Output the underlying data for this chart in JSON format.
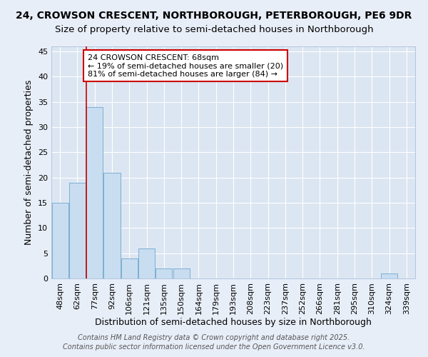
{
  "title_line1": "24, CROWSON CRESCENT, NORTHBOROUGH, PETERBOROUGH, PE6 9DR",
  "title_line2": "Size of property relative to semi-detached houses in Northborough",
  "xlabel": "Distribution of semi-detached houses by size in Northborough",
  "ylabel": "Number of semi-detached properties",
  "categories": [
    "48sqm",
    "62sqm",
    "77sqm",
    "92sqm",
    "106sqm",
    "121sqm",
    "135sqm",
    "150sqm",
    "164sqm",
    "179sqm",
    "193sqm",
    "208sqm",
    "223sqm",
    "237sqm",
    "252sqm",
    "266sqm",
    "281sqm",
    "295sqm",
    "310sqm",
    "324sqm",
    "339sqm"
  ],
  "values": [
    15,
    19,
    34,
    21,
    4,
    6,
    2,
    2,
    0,
    0,
    0,
    0,
    0,
    0,
    0,
    0,
    0,
    0,
    0,
    1,
    0
  ],
  "bar_color": "#c9ddf0",
  "bar_edgecolor": "#7bafd4",
  "property_line_index": 1.5,
  "property_line_color": "#cc0000",
  "annotation_text": "24 CROWSON CRESCENT: 68sqm\n← 19% of semi-detached houses are smaller (20)\n81% of semi-detached houses are larger (84) →",
  "annotation_box_edgecolor": "#cc0000",
  "annotation_box_facecolor": "#ffffff",
  "ylim": [
    0,
    46
  ],
  "yticks": [
    0,
    5,
    10,
    15,
    20,
    25,
    30,
    35,
    40,
    45
  ],
  "background_color": "#e8eef8",
  "plot_background_color": "#dce6f2",
  "grid_color": "#ffffff",
  "footer_line1": "Contains HM Land Registry data © Crown copyright and database right 2025.",
  "footer_line2": "Contains public sector information licensed under the Open Government Licence v3.0.",
  "title_fontsize": 10,
  "subtitle_fontsize": 9.5,
  "axis_label_fontsize": 9,
  "tick_fontsize": 8,
  "annotation_fontsize": 8,
  "footer_fontsize": 7
}
